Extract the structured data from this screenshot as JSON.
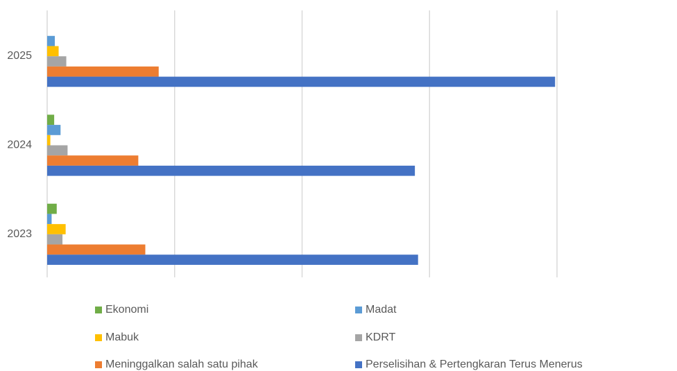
{
  "chart_data": {
    "type": "bar",
    "orientation": "horizontal",
    "categories": [
      "2023",
      "2024",
      "2025"
    ],
    "xlim": [
      0,
      1000
    ],
    "grid": true,
    "legend_position": "bottom",
    "series": [
      {
        "name": "Ekonomi",
        "color": "#70AD47",
        "values": [
          15,
          11,
          0
        ]
      },
      {
        "name": "Madat",
        "color": "#5B9BD5",
        "values": [
          7,
          21,
          12
        ]
      },
      {
        "name": "Mabuk",
        "color": "#FFC000",
        "values": [
          29,
          5,
          18
        ]
      },
      {
        "name": "KDRT",
        "color": "#A5A5A5",
        "values": [
          24,
          32,
          30
        ]
      },
      {
        "name": "Meninggalkan salah satu pihak",
        "color": "#ED7D31",
        "values": [
          154,
          143,
          175
        ]
      },
      {
        "name": "Perselisihan & Pertengkaran Terus Menerus",
        "color": "#4472C4",
        "values": [
          582,
          577,
          797
        ]
      }
    ]
  }
}
